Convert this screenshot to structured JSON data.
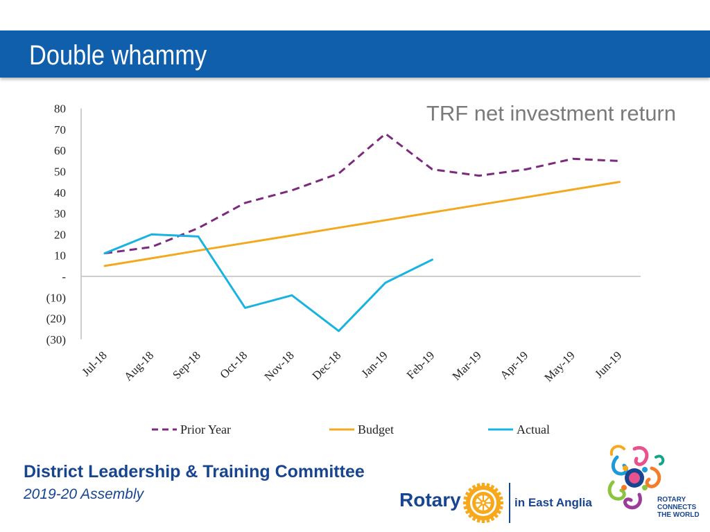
{
  "slide": {
    "title": "Double whammy"
  },
  "chart_data": {
    "type": "line",
    "title": "TRF net investment return",
    "xlabel": "",
    "ylabel": "",
    "categories": [
      "Jul-18",
      "Aug-18",
      "Sep-18",
      "Oct-18",
      "Nov-18",
      "Dec-18",
      "Jan-19",
      "Feb-19",
      "Mar-19",
      "Apr-19",
      "May-19",
      "Jun-19"
    ],
    "yticks": [
      80,
      70,
      60,
      50,
      40,
      30,
      20,
      10,
      0,
      -10,
      -20,
      -30
    ],
    "ytick_labels": [
      "80",
      "70",
      "60",
      "50",
      "40",
      "30",
      "20",
      "10",
      "-",
      "(10)",
      "(20)",
      "(30)"
    ],
    "ylim": [
      -30,
      80
    ],
    "grid": false,
    "legend_position": "bottom",
    "series": [
      {
        "name": "Prior Year",
        "style": "dashed",
        "color": "#7b2a7e",
        "values": [
          11,
          14,
          23,
          35,
          41,
          49,
          68,
          51,
          48,
          51,
          56,
          55
        ]
      },
      {
        "name": "Budget",
        "style": "solid",
        "color": "#f2a91e",
        "values": [
          5,
          8.6,
          12.3,
          15.9,
          19.5,
          23.2,
          26.8,
          30.5,
          34.1,
          37.7,
          41.4,
          45
        ]
      },
      {
        "name": "Actual",
        "style": "solid",
        "color": "#19b2e1",
        "values": [
          11,
          20,
          19,
          -15,
          -9,
          -26,
          -3,
          8,
          null,
          null,
          null,
          null
        ]
      }
    ]
  },
  "footer": {
    "committee": "District  Leadership & Training Committee",
    "assembly": "2019-20 Assembly",
    "rotary_word": "Rotary",
    "rotary_region": "in East Anglia",
    "rctw_lines": [
      "ROTARY",
      "CONNECTS",
      "THE WORLD"
    ]
  },
  "colors": {
    "header_bar": "#0f5fad",
    "footer_text": "#17458f",
    "rotary_gold": "#f7a81b"
  },
  "icons": [
    "rotary-wheel-icon",
    "rotary-connects-the-world-logo"
  ]
}
